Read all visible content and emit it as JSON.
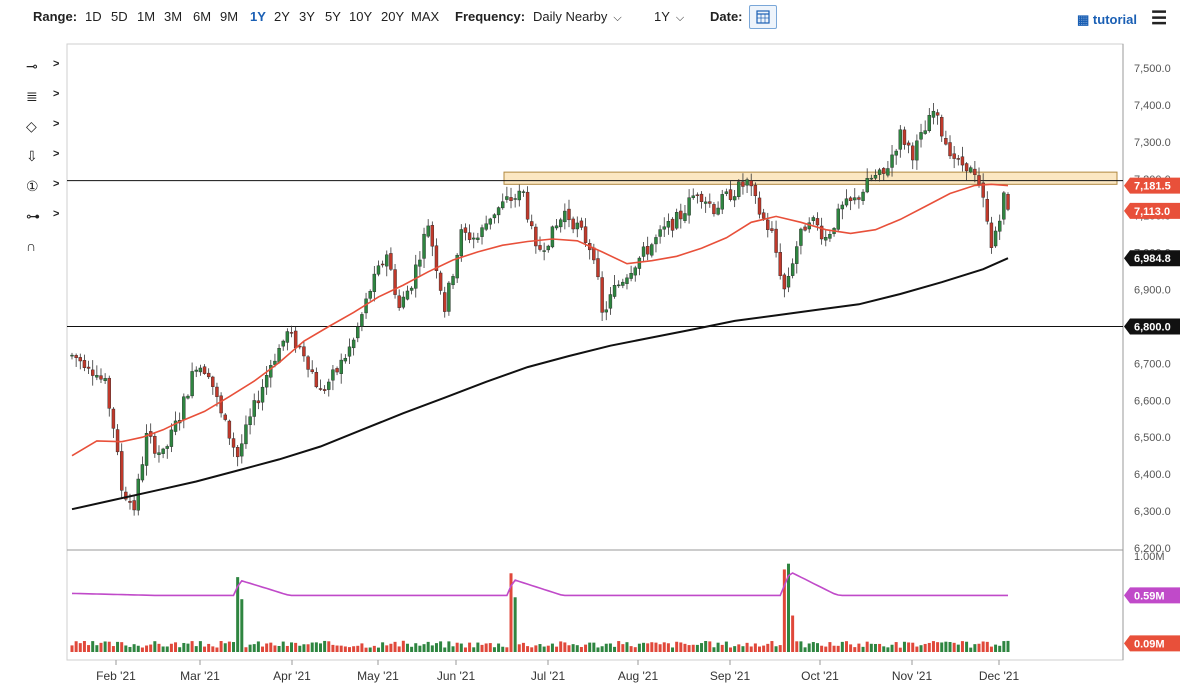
{
  "toolbar": {
    "range_label": "Range:",
    "ranges": [
      "1D",
      "5D",
      "1M",
      "3M",
      "6M",
      "9M",
      "1Y",
      "2Y",
      "3Y",
      "5Y",
      "10Y",
      "20Y",
      "MAX"
    ],
    "active_range": "1Y",
    "frequency_label": "Frequency:",
    "frequency_value": "Daily Nearby",
    "period_value": "1Y",
    "date_label": "Date:",
    "tutorial_label": "tutorial",
    "calendar_icon": "calendar-icon",
    "menu_icon": "hamburger-menu-icon"
  },
  "drawing_tools": [
    {
      "icon": "line-tool-icon",
      "glyph": "⊸"
    },
    {
      "icon": "fibonacci-tool-icon",
      "glyph": "≣"
    },
    {
      "icon": "shape-tool-icon",
      "glyph": "◇"
    },
    {
      "icon": "arrow-tool-icon",
      "glyph": "⇩"
    },
    {
      "icon": "elliott-wave-tool-icon",
      "glyph": "①"
    },
    {
      "icon": "measure-tool-icon",
      "glyph": "⊶"
    },
    {
      "icon": "magnet-icon",
      "glyph": "∩"
    }
  ],
  "colors": {
    "up": "#2e8540",
    "down": "#c0392b",
    "ma50": "#e8503a",
    "ma200": "#111111",
    "volume_ma": "#c04ac9",
    "zone_fill": "#fbe7c2",
    "zone_stroke": "#b08840"
  },
  "chart_data": {
    "type": "candlestick",
    "price_axis": {
      "ticks": [
        "7,500.0",
        "7,400.0",
        "7,300.0",
        "7,200.0",
        "7,100.0",
        "7,000.0",
        "6,900.0",
        "6,800.0",
        "6,700.0",
        "6,600.0",
        "6,500.0",
        "6,400.0",
        "6,300.0",
        "6,200.0"
      ],
      "range": [
        6190,
        7530
      ]
    },
    "x_ticks": [
      "Feb '21",
      "Mar '21",
      "Apr '21",
      "May '21",
      "Jun '21",
      "Jul '21",
      "Aug '21",
      "Sep '21",
      "Oct '21",
      "Nov '21",
      "Dec '21"
    ],
    "period": {
      "start": "2021-01-18",
      "end": "2021-12-03"
    },
    "horizontal_lines": [
      7195,
      6800
    ],
    "resistance_zone": [
      7185,
      7218
    ],
    "price_labels": [
      {
        "text": "7,181.5",
        "value": 7181.5,
        "color": "#e8503a"
      },
      {
        "text": "7,113.0",
        "value": 7113.0,
        "color": "#e8503a"
      },
      {
        "text": "6,984.8",
        "value": 6984.8,
        "color": "#111111"
      },
      {
        "text": "6,800.0",
        "value": 6800.0,
        "color": "#111111"
      }
    ],
    "ma50_points": [
      [
        0,
        6450
      ],
      [
        6,
        6490
      ],
      [
        12,
        6488
      ],
      [
        17,
        6500
      ],
      [
        22,
        6520
      ],
      [
        26,
        6542
      ],
      [
        32,
        6570
      ],
      [
        38,
        6610
      ],
      [
        44,
        6652
      ],
      [
        50,
        6702
      ],
      [
        56,
        6760
      ],
      [
        62,
        6800
      ],
      [
        68,
        6838
      ],
      [
        74,
        6880
      ],
      [
        80,
        6912
      ],
      [
        86,
        6948
      ],
      [
        92,
        6980
      ],
      [
        98,
        7002
      ],
      [
        104,
        7020
      ],
      [
        110,
        7030
      ],
      [
        116,
        7037
      ],
      [
        122,
        7032
      ],
      [
        128,
        7002
      ],
      [
        134,
        6970
      ],
      [
        140,
        6978
      ],
      [
        146,
        6990
      ],
      [
        152,
        7012
      ],
      [
        158,
        7040
      ],
      [
        164,
        7082
      ],
      [
        170,
        7098
      ],
      [
        176,
        7082
      ],
      [
        182,
        7062
      ],
      [
        188,
        7052
      ],
      [
        194,
        7062
      ],
      [
        200,
        7090
      ],
      [
        206,
        7125
      ],
      [
        212,
        7160
      ],
      [
        218,
        7182
      ],
      [
        222,
        7185
      ],
      [
        226,
        7181.5
      ]
    ],
    "ma200_points": [
      [
        0,
        6305
      ],
      [
        10,
        6330
      ],
      [
        20,
        6355
      ],
      [
        30,
        6380
      ],
      [
        40,
        6410
      ],
      [
        50,
        6440
      ],
      [
        60,
        6475
      ],
      [
        70,
        6520
      ],
      [
        80,
        6565
      ],
      [
        90,
        6607
      ],
      [
        100,
        6650
      ],
      [
        110,
        6690
      ],
      [
        120,
        6720
      ],
      [
        130,
        6748
      ],
      [
        140,
        6770
      ],
      [
        150,
        6792
      ],
      [
        160,
        6815
      ],
      [
        170,
        6830
      ],
      [
        180,
        6845
      ],
      [
        190,
        6860
      ],
      [
        200,
        6888
      ],
      [
        210,
        6920
      ],
      [
        220,
        6955
      ],
      [
        226,
        6984.8
      ]
    ],
    "candle_anchors": [
      [
        0,
        6720
      ],
      [
        4,
        6700
      ],
      [
        8,
        6640
      ],
      [
        10,
        6530
      ],
      [
        12,
        6360
      ],
      [
        15,
        6310
      ],
      [
        18,
        6500
      ],
      [
        22,
        6450
      ],
      [
        26,
        6560
      ],
      [
        30,
        6700
      ],
      [
        33,
        6680
      ],
      [
        36,
        6560
      ],
      [
        40,
        6450
      ],
      [
        44,
        6580
      ],
      [
        48,
        6700
      ],
      [
        52,
        6780
      ],
      [
        56,
        6730
      ],
      [
        60,
        6620
      ],
      [
        64,
        6680
      ],
      [
        68,
        6760
      ],
      [
        72,
        6900
      ],
      [
        76,
        7000
      ],
      [
        79,
        6850
      ],
      [
        82,
        6920
      ],
      [
        86,
        7080
      ],
      [
        90,
        6850
      ],
      [
        94,
        7050
      ],
      [
        98,
        7040
      ],
      [
        101,
        7100
      ],
      [
        105,
        7140
      ],
      [
        109,
        7160
      ],
      [
        112,
        7000
      ],
      [
        116,
        7050
      ],
      [
        119,
        7110
      ],
      [
        122,
        7070
      ],
      [
        126,
        7000
      ],
      [
        128,
        6830
      ],
      [
        131,
        6900
      ],
      [
        135,
        6960
      ],
      [
        139,
        7010
      ],
      [
        143,
        7060
      ],
      [
        147,
        7100
      ],
      [
        151,
        7170
      ],
      [
        155,
        7120
      ],
      [
        159,
        7160
      ],
      [
        163,
        7190
      ],
      [
        166,
        7110
      ],
      [
        169,
        7050
      ],
      [
        172,
        6900
      ],
      [
        175,
        7020
      ],
      [
        178,
        7100
      ],
      [
        182,
        7040
      ],
      [
        186,
        7120
      ],
      [
        189,
        7140
      ],
      [
        193,
        7200
      ],
      [
        196,
        7210
      ],
      [
        200,
        7320
      ],
      [
        203,
        7270
      ],
      [
        206,
        7330
      ],
      [
        208,
        7380
      ],
      [
        211,
        7300
      ],
      [
        214,
        7240
      ],
      [
        216,
        7240
      ],
      [
        218,
        7200
      ],
      [
        220,
        7140
      ],
      [
        222,
        7010
      ],
      [
        223,
        7060
      ],
      [
        225,
        7150
      ],
      [
        226,
        7113
      ]
    ],
    "volume_axis": {
      "ticks": [
        "1.00M",
        "0.59M",
        "0.09M"
      ]
    },
    "volume_labels": [
      {
        "text": "0.59M",
        "color": "#c04ac9"
      },
      {
        "text": "0.09M",
        "color": "#e8503a"
      }
    ],
    "volume_spikes": [
      [
        40,
        0.78
      ],
      [
        41,
        0.55
      ],
      [
        106,
        0.82
      ],
      [
        107,
        0.57
      ],
      [
        172,
        0.86
      ],
      [
        173,
        0.92
      ],
      [
        174,
        0.38
      ]
    ],
    "volume_base": 0.09,
    "volume_ma": 0.59
  }
}
